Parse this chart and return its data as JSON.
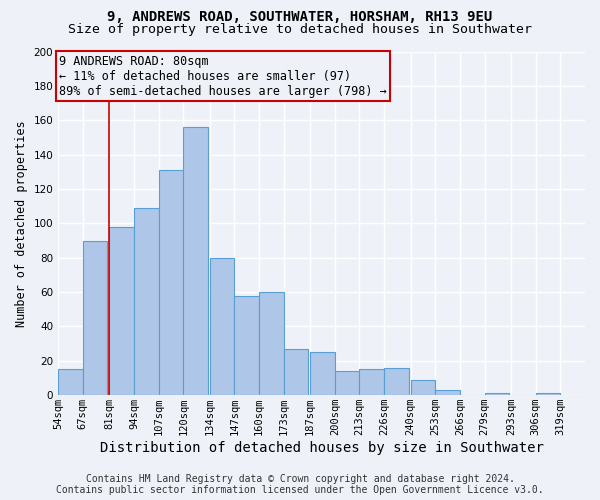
{
  "title": "9, ANDREWS ROAD, SOUTHWATER, HORSHAM, RH13 9EU",
  "subtitle": "Size of property relative to detached houses in Southwater",
  "xlabel": "Distribution of detached houses by size in Southwater",
  "ylabel": "Number of detached properties",
  "bar_left_edges": [
    54,
    67,
    81,
    94,
    107,
    120,
    134,
    147,
    160,
    173,
    187,
    200,
    213,
    226,
    240,
    253,
    266,
    279,
    293,
    306
  ],
  "bar_heights": [
    15,
    90,
    98,
    109,
    131,
    156,
    80,
    58,
    60,
    27,
    25,
    14,
    15,
    16,
    9,
    3,
    0,
    1,
    0,
    1
  ],
  "bin_width": 13,
  "tick_labels": [
    "54sqm",
    "67sqm",
    "81sqm",
    "94sqm",
    "107sqm",
    "120sqm",
    "134sqm",
    "147sqm",
    "160sqm",
    "173sqm",
    "187sqm",
    "200sqm",
    "213sqm",
    "226sqm",
    "240sqm",
    "253sqm",
    "266sqm",
    "279sqm",
    "293sqm",
    "306sqm",
    "319sqm"
  ],
  "bar_color": "#aec6e8",
  "bar_edge_color": "#5a9fd4",
  "vline_x": 81,
  "vline_color": "#cc0000",
  "annotation_lines": [
    "9 ANDREWS ROAD: 80sqm",
    "← 11% of detached houses are smaller (97)",
    "89% of semi-detached houses are larger (798) →"
  ],
  "annotation_fontsize": 8.5,
  "annotation_box_color": "#cc0000",
  "ylim": [
    0,
    200
  ],
  "yticks": [
    0,
    20,
    40,
    60,
    80,
    100,
    120,
    140,
    160,
    180,
    200
  ],
  "footer_line1": "Contains HM Land Registry data © Crown copyright and database right 2024.",
  "footer_line2": "Contains public sector information licensed under the Open Government Licence v3.0.",
  "bg_color": "#eef2f8",
  "grid_color": "#ffffff",
  "title_fontsize": 10,
  "subtitle_fontsize": 9.5,
  "xlabel_fontsize": 10,
  "ylabel_fontsize": 8.5,
  "tick_fontsize": 7.5,
  "footer_fontsize": 7
}
